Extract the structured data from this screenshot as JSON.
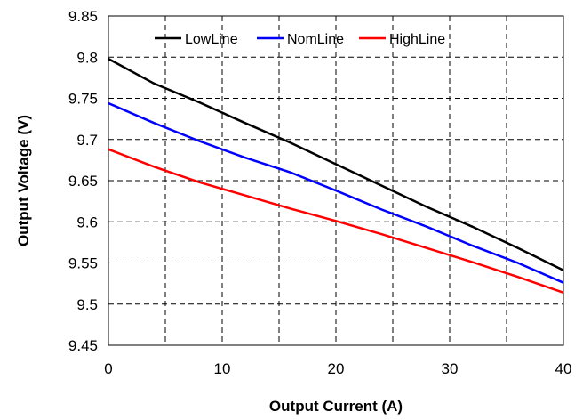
{
  "chart_data": {
    "type": "line",
    "title": "",
    "xlabel": "Output Current (A)",
    "ylabel": "Output Voltage  (V)",
    "xlim": [
      0,
      40
    ],
    "ylim": [
      9.45,
      9.85
    ],
    "x_ticks": [
      "0",
      "10",
      "20",
      "30",
      "40"
    ],
    "y_ticks": [
      "9.85",
      "9.8",
      "9.75",
      "9.7",
      "9.65",
      "9.6",
      "9.55",
      "9.5",
      "9.45"
    ],
    "grid": true,
    "legend_position": "top",
    "series": [
      {
        "name": "LowLine",
        "color": "#000000",
        "x": [
          0,
          4,
          8,
          12,
          16,
          20,
          24,
          28,
          32,
          36,
          40
        ],
        "y": [
          9.798,
          9.768,
          9.745,
          9.72,
          9.696,
          9.67,
          9.644,
          9.618,
          9.594,
          9.568,
          9.541
        ]
      },
      {
        "name": "NomLine",
        "color": "#0000ff",
        "x": [
          0,
          4,
          8,
          12,
          16,
          20,
          24,
          28,
          32,
          36,
          40
        ],
        "y": [
          9.744,
          9.72,
          9.698,
          9.678,
          9.66,
          9.638,
          9.615,
          9.594,
          9.571,
          9.55,
          9.526
        ]
      },
      {
        "name": "HighLine",
        "color": "#ff0000",
        "x": [
          0,
          4,
          8,
          12,
          16,
          20,
          24,
          28,
          32,
          36,
          40
        ],
        "y": [
          9.688,
          9.667,
          9.648,
          9.632,
          9.616,
          9.601,
          9.585,
          9.568,
          9.551,
          9.533,
          9.514
        ]
      }
    ]
  }
}
